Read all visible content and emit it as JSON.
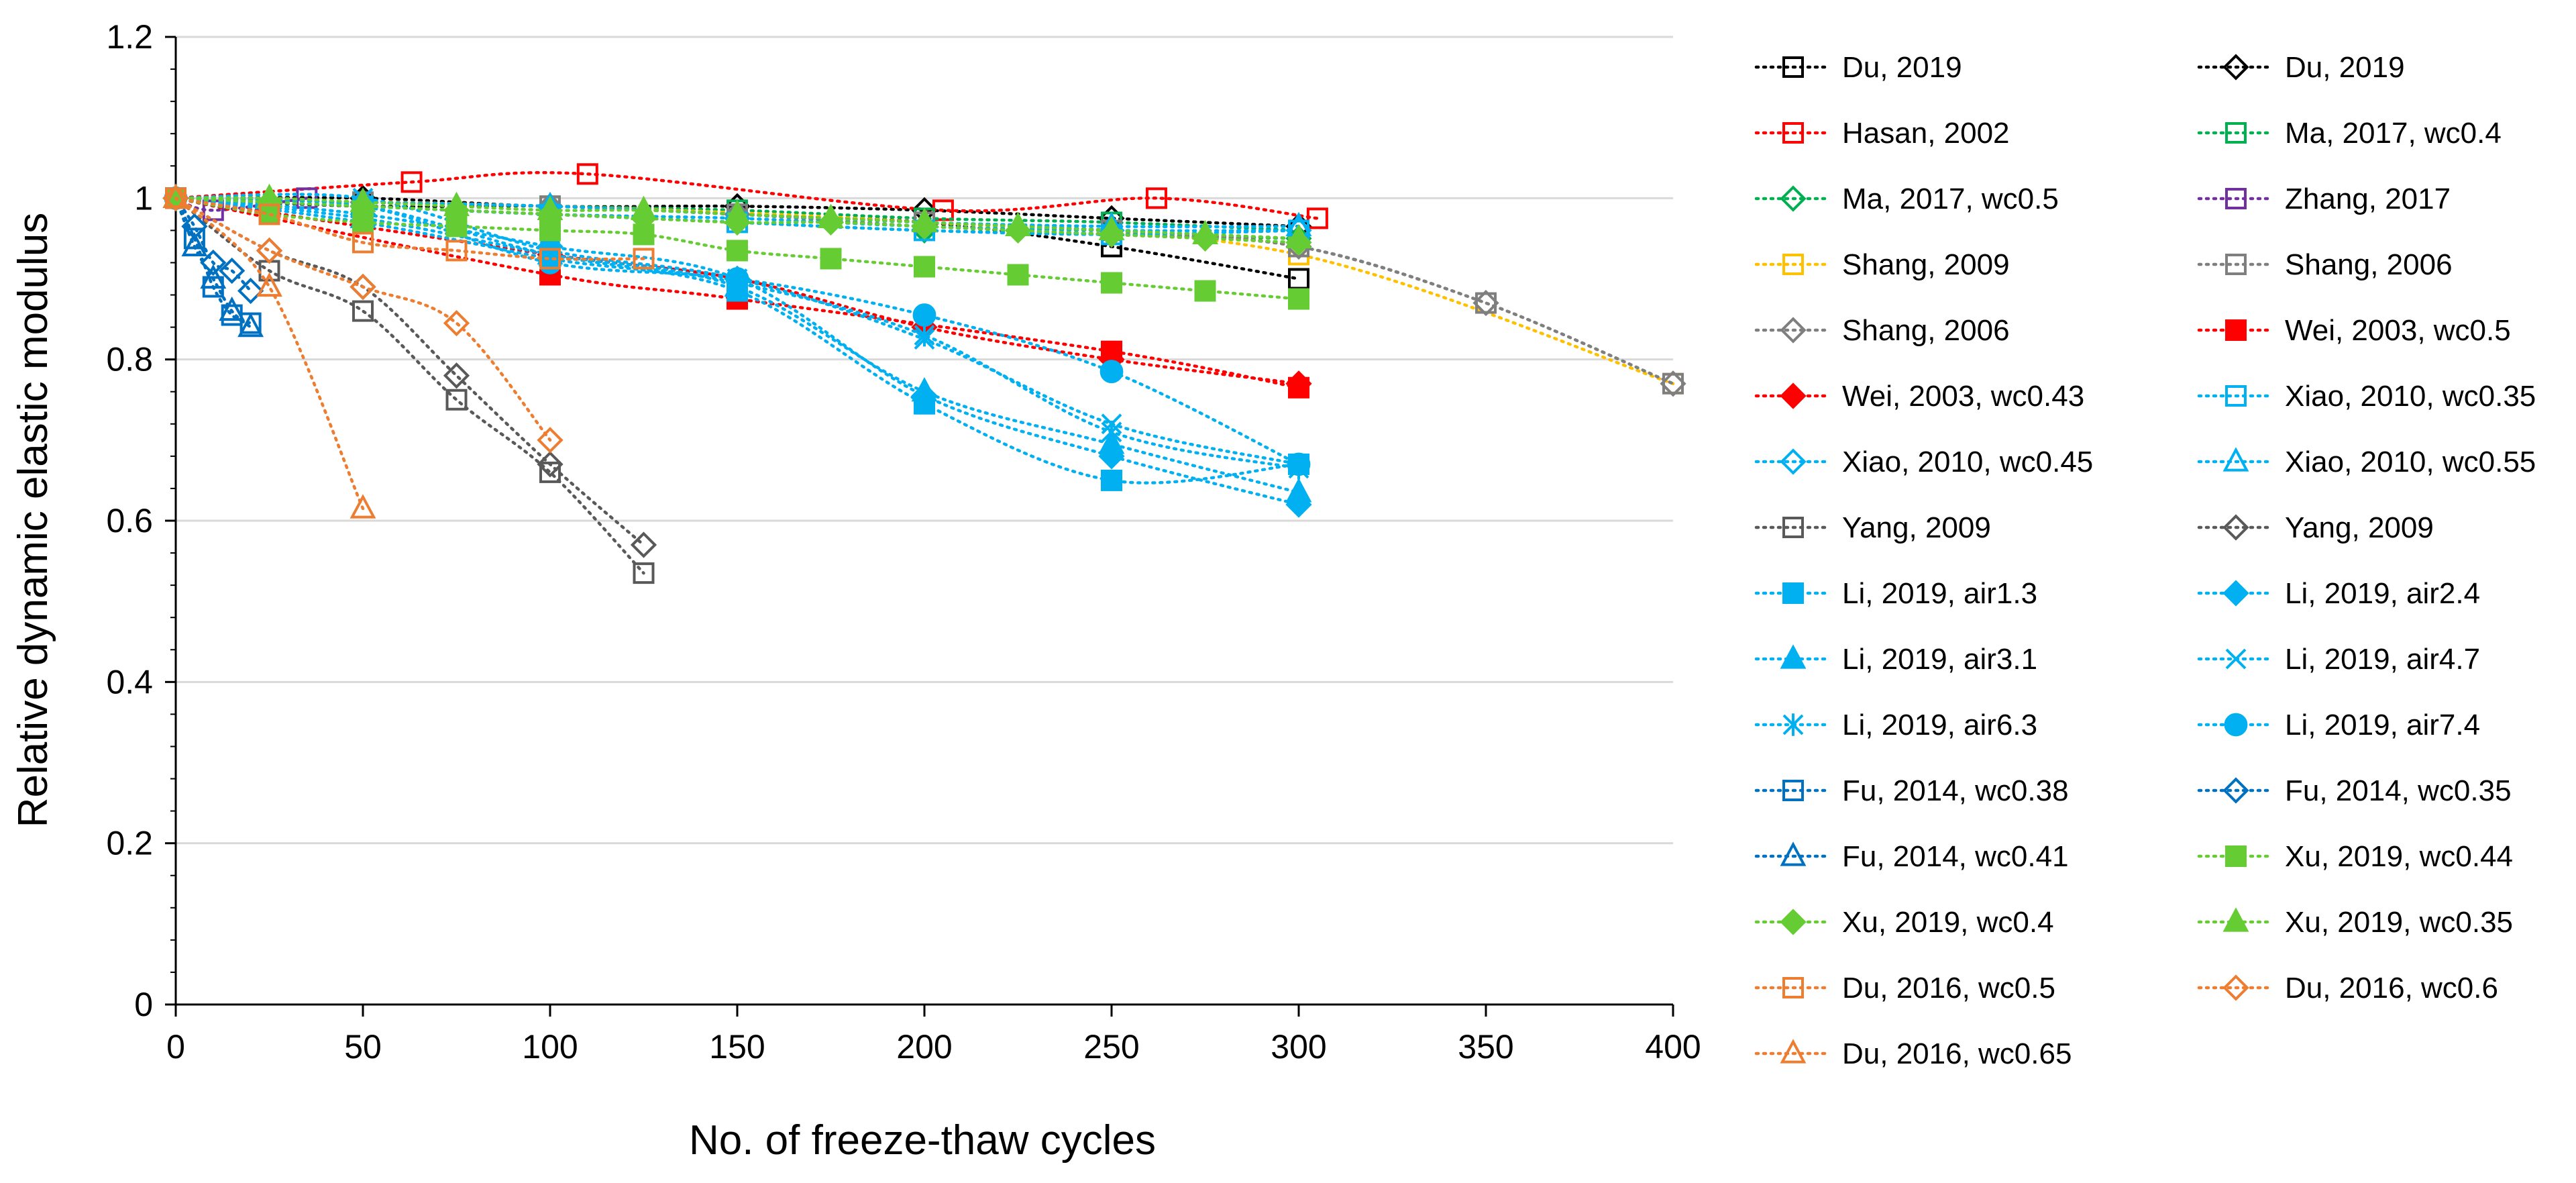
{
  "chart_data": {
    "type": "scatter",
    "title": "",
    "xlabel": "No. of freeze-thaw cycles",
    "ylabel": "Relative dynamic elastic modulus",
    "xlim": [
      0,
      400
    ],
    "ylim": [
      0,
      1.2
    ],
    "x_ticks": [
      "0",
      "50",
      "100",
      "150",
      "200",
      "250",
      "300",
      "350",
      "400"
    ],
    "y_ticks": [
      "0",
      "0.2",
      "0.4",
      "0.6",
      "0.8",
      "1",
      "1.2"
    ],
    "grid": "horizontal",
    "legend_position": "right",
    "series": [
      {
        "name": "Du, 2019",
        "color": "#000000",
        "marker": "square",
        "filled": false,
        "x": [
          0,
          50,
          100,
          150,
          200,
          250,
          300
        ],
        "y": [
          1,
          0.99,
          0.99,
          0.98,
          0.97,
          0.94,
          0.9
        ]
      },
      {
        "name": "Du, 2019",
        "color": "#000000",
        "marker": "diamond",
        "filled": false,
        "x": [
          0,
          50,
          100,
          150,
          200,
          250,
          300
        ],
        "y": [
          1,
          1,
          0.99,
          0.99,
          0.985,
          0.975,
          0.965
        ]
      },
      {
        "name": "Hasan, 2002",
        "color": "#ff0000",
        "marker": "square",
        "filled": false,
        "x": [
          0,
          63,
          110,
          205,
          262,
          305
        ],
        "y": [
          1,
          1.02,
          1.03,
          0.985,
          1,
          0.975
        ]
      },
      {
        "name": "Ma, 2017, wc0.4",
        "color": "#00b050",
        "marker": "square",
        "filled": false,
        "x": [
          0,
          50,
          100,
          150,
          200,
          250,
          300
        ],
        "y": [
          1,
          0.995,
          0.99,
          0.985,
          0.975,
          0.97,
          0.96
        ]
      },
      {
        "name": "Ma, 2017, wc0.5",
        "color": "#00b050",
        "marker": "diamond",
        "filled": false,
        "x": [
          0,
          50,
          100,
          150,
          200,
          250,
          300
        ],
        "y": [
          1,
          0.99,
          0.98,
          0.97,
          0.96,
          0.955,
          0.95
        ]
      },
      {
        "name": "Zhang, 2017",
        "color": "#7030a0",
        "marker": "square",
        "filled": false,
        "x": [
          0,
          10,
          35
        ],
        "y": [
          1,
          0.985,
          1
        ]
      },
      {
        "name": "Shang, 2009",
        "color": "#ffc000",
        "marker": "square",
        "filled": false,
        "x": [
          0,
          100,
          200,
          300,
          400
        ],
        "y": [
          1,
          0.99,
          0.97,
          0.93,
          0.77
        ]
      },
      {
        "name": "Shang, 2006",
        "color": "#7f7f7f",
        "marker": "square",
        "filled": false,
        "x": [
          0,
          50,
          100,
          150,
          200,
          250,
          300,
          350,
          400
        ],
        "y": [
          1,
          0.995,
          0.99,
          0.98,
          0.97,
          0.96,
          0.94,
          0.87,
          0.77
        ]
      },
      {
        "name": "Shang, 2006",
        "color": "#7f7f7f",
        "marker": "diamond",
        "filled": false,
        "x": [
          0,
          50,
          100,
          150,
          200,
          250,
          300,
          350,
          400
        ],
        "y": [
          1,
          0.995,
          0.99,
          0.98,
          0.965,
          0.955,
          0.94,
          0.87,
          0.77
        ]
      },
      {
        "name": "Wei, 2003, wc0.5",
        "color": "#ff0000",
        "marker": "square",
        "filled": true,
        "x": [
          0,
          100,
          150,
          250,
          300
        ],
        "y": [
          1,
          0.905,
          0.875,
          0.81,
          0.765
        ]
      },
      {
        "name": "Wei, 2003, wc0.43",
        "color": "#ff0000",
        "marker": "diamond",
        "filled": true,
        "x": [
          0,
          100,
          150,
          200,
          250,
          300
        ],
        "y": [
          1,
          0.93,
          0.9,
          0.84,
          0.8,
          0.77
        ]
      },
      {
        "name": "Xiao, 2010, wc0.35",
        "color": "#00b0f0",
        "marker": "square",
        "filled": false,
        "x": [
          0,
          50,
          100,
          150,
          200,
          250,
          300
        ],
        "y": [
          1,
          0.99,
          0.98,
          0.97,
          0.96,
          0.955,
          0.96
        ]
      },
      {
        "name": "Xiao, 2010, wc0.45",
        "color": "#00b0f0",
        "marker": "diamond",
        "filled": false,
        "x": [
          0,
          50,
          100,
          150,
          200,
          250,
          300
        ],
        "y": [
          1,
          0.99,
          0.98,
          0.975,
          0.965,
          0.96,
          0.96
        ]
      },
      {
        "name": "Xiao, 2010, wc0.55",
        "color": "#00b0f0",
        "marker": "triangle",
        "filled": false,
        "x": [
          0,
          50,
          100,
          150,
          200,
          250,
          300
        ],
        "y": [
          1,
          0.995,
          0.99,
          0.98,
          0.97,
          0.965,
          0.965
        ]
      },
      {
        "name": "Yang, 2009",
        "color": "#595959",
        "marker": "square",
        "filled": false,
        "x": [
          0,
          25,
          50,
          75,
          100,
          125
        ],
        "y": [
          1,
          0.91,
          0.86,
          0.75,
          0.66,
          0.535
        ]
      },
      {
        "name": "Yang, 2009",
        "color": "#595959",
        "marker": "diamond",
        "filled": false,
        "x": [
          0,
          25,
          50,
          75,
          100,
          125
        ],
        "y": [
          1,
          0.935,
          0.89,
          0.78,
          0.67,
          0.57
        ]
      },
      {
        "name": "Li, 2019, air1.3",
        "color": "#00b0f0",
        "marker": "square",
        "filled": true,
        "x": [
          0,
          50,
          100,
          150,
          200,
          250,
          300
        ],
        "y": [
          1,
          0.97,
          0.925,
          0.885,
          0.745,
          0.65,
          0.67
        ]
      },
      {
        "name": "Li, 2019, air2.4",
        "color": "#00b0f0",
        "marker": "diamond",
        "filled": true,
        "x": [
          0,
          50,
          100,
          150,
          200,
          250,
          300
        ],
        "y": [
          1,
          0.98,
          0.94,
          0.9,
          0.755,
          0.68,
          0.62
        ]
      },
      {
        "name": "Li, 2019, air3.1",
        "color": "#00b0f0",
        "marker": "triangle",
        "filled": true,
        "x": [
          0,
          50,
          100,
          150,
          200,
          250,
          300
        ],
        "y": [
          1,
          0.975,
          0.93,
          0.89,
          0.76,
          0.695,
          0.635
        ]
      },
      {
        "name": "Li, 2019, air4.7",
        "color": "#00b0f0",
        "marker": "x",
        "filled": false,
        "x": [
          0,
          50,
          100,
          150,
          200,
          250,
          300
        ],
        "y": [
          1,
          1,
          0.935,
          0.9,
          0.825,
          0.72,
          0.67
        ]
      },
      {
        "name": "Li, 2019, air6.3",
        "color": "#00b0f0",
        "marker": "star",
        "filled": false,
        "x": [
          0,
          50,
          100,
          150,
          200,
          250,
          300
        ],
        "y": [
          1,
          0.99,
          0.93,
          0.895,
          0.83,
          0.71,
          0.665
        ]
      },
      {
        "name": "Li, 2019, air7.4",
        "color": "#00b0f0",
        "marker": "circle",
        "filled": true,
        "x": [
          0,
          50,
          100,
          150,
          200,
          250,
          300
        ],
        "y": [
          1,
          0.99,
          0.92,
          0.9,
          0.855,
          0.785,
          0.67
        ]
      },
      {
        "name": "Fu, 2014, wc0.38",
        "color": "#0070c0",
        "marker": "square",
        "filled": false,
        "x": [
          0,
          5,
          10,
          15,
          20
        ],
        "y": [
          1,
          0.95,
          0.89,
          0.855,
          0.845
        ]
      },
      {
        "name": "Fu, 2014, wc0.35",
        "color": "#0070c0",
        "marker": "diamond",
        "filled": false,
        "x": [
          0,
          5,
          10,
          15,
          20
        ],
        "y": [
          1,
          0.965,
          0.92,
          0.91,
          0.885
        ]
      },
      {
        "name": "Fu, 2014, wc0.41",
        "color": "#0070c0",
        "marker": "triangle",
        "filled": false,
        "x": [
          0,
          5,
          10,
          15,
          20
        ],
        "y": [
          1,
          0.94,
          0.9,
          0.86,
          0.84
        ]
      },
      {
        "name": "Xu, 2019, wc0.44",
        "color": "#66cc33",
        "marker": "square",
        "filled": true,
        "x": [
          0,
          25,
          50,
          75,
          100,
          125,
          150,
          175,
          200,
          225,
          250,
          275,
          300
        ],
        "y": [
          1,
          0.98,
          0.97,
          0.965,
          0.96,
          0.955,
          0.935,
          0.925,
          0.915,
          0.905,
          0.895,
          0.885,
          0.875
        ]
      },
      {
        "name": "Xu, 2019, wc0.4",
        "color": "#66cc33",
        "marker": "diamond",
        "filled": true,
        "x": [
          0,
          25,
          50,
          75,
          100,
          125,
          150,
          175,
          200,
          225,
          250,
          275,
          300
        ],
        "y": [
          1,
          0.995,
          0.99,
          0.985,
          0.98,
          0.975,
          0.97,
          0.97,
          0.965,
          0.96,
          0.955,
          0.95,
          0.945
        ]
      },
      {
        "name": "Xu, 2019, wc0.35",
        "color": "#66cc33",
        "marker": "triangle",
        "filled": true,
        "x": [
          0,
          25,
          50,
          75,
          100,
          125,
          150,
          175,
          200,
          225,
          250,
          275,
          300
        ],
        "y": [
          1,
          1,
          0.995,
          0.99,
          0.985,
          0.985,
          0.98,
          0.975,
          0.97,
          0.965,
          0.96,
          0.955,
          0.95
        ]
      },
      {
        "name": "Du, 2016, wc0.5",
        "color": "#ed7d31",
        "marker": "square",
        "filled": false,
        "x": [
          0,
          25,
          50,
          75,
          100,
          125
        ],
        "y": [
          1,
          0.98,
          0.945,
          0.935,
          0.925,
          0.925
        ]
      },
      {
        "name": "Du, 2016, wc0.6",
        "color": "#ed7d31",
        "marker": "diamond",
        "filled": false,
        "x": [
          0,
          25,
          50,
          75,
          100
        ],
        "y": [
          1,
          0.935,
          0.89,
          0.845,
          0.7
        ]
      },
      {
        "name": "Du, 2016, wc0.65",
        "color": "#ed7d31",
        "marker": "triangle",
        "filled": false,
        "x": [
          0,
          25,
          50
        ],
        "y": [
          1,
          0.89,
          0.615
        ]
      }
    ]
  }
}
